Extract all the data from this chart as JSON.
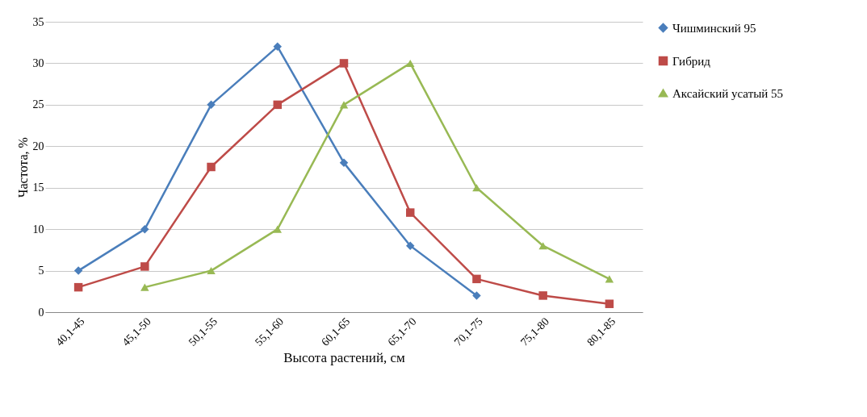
{
  "chart_data": {
    "type": "line",
    "xlabel": "Высота растений, см",
    "ylabel": "Частота, %",
    "categories": [
      "40,1-45",
      "45,1-50",
      "50,1-55",
      "55,1-60",
      "60,1-65",
      "65,1-70",
      "70,1-75",
      "75,1-80",
      "80,1-85"
    ],
    "series": [
      {
        "name": "Чишминский 95",
        "color": "#4a7ebb",
        "marker": "diamond",
        "values": [
          5,
          10,
          25,
          32,
          18,
          8,
          2,
          null,
          null
        ]
      },
      {
        "name": "Гибрид",
        "color": "#be4b48",
        "marker": "square",
        "values": [
          3,
          5.5,
          17.5,
          25,
          30,
          12,
          4,
          2,
          1
        ]
      },
      {
        "name": "Аксайский усатый 55",
        "color": "#98b954",
        "marker": "triangle",
        "values": [
          null,
          3,
          5,
          10,
          25,
          30,
          15,
          8,
          4
        ]
      }
    ],
    "ylim": [
      0,
      35
    ],
    "yticks": [
      0,
      5,
      10,
      15,
      20,
      25,
      30,
      35
    ],
    "grid": "y",
    "legend": "right",
    "line_style": "solid"
  }
}
